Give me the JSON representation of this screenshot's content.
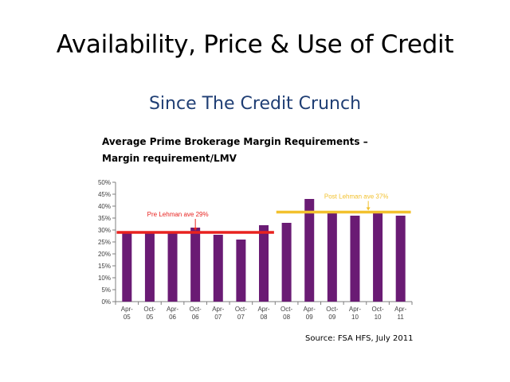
{
  "slide": {
    "title": "Availability, Price & Use of Credit",
    "subtitle": "Since The Credit Crunch",
    "source": "Source: FSA HFS, July 2011"
  },
  "chart_data": {
    "type": "bar",
    "title_line1": "Average Prime Brokerage Margin Requirements –",
    "title_line2": "Margin requirement/LMV",
    "categories": [
      [
        "Apr-",
        "05"
      ],
      [
        "Oct-",
        "05"
      ],
      [
        "Apr-",
        "06"
      ],
      [
        "Oct-",
        "06"
      ],
      [
        "Apr-",
        "07"
      ],
      [
        "Oct-",
        "07"
      ],
      [
        "Apr-",
        "08"
      ],
      [
        "Oct-",
        "08"
      ],
      [
        "Apr-",
        "09"
      ],
      [
        "Oct-",
        "09"
      ],
      [
        "Apr-",
        "10"
      ],
      [
        "Oct-",
        "10"
      ],
      [
        "Apr-",
        "11"
      ]
    ],
    "values": [
      29,
      29,
      29,
      31,
      28,
      26,
      32,
      33,
      43,
      38,
      36,
      38,
      36
    ],
    "ylim": [
      0,
      50
    ],
    "yticks": [
      "0%",
      "5%",
      "10%",
      "15%",
      "20%",
      "25%",
      "30%",
      "35%",
      "40%",
      "45%",
      "50%"
    ],
    "bar_color": "#6a1b74",
    "annotations": [
      {
        "label": "Pre Lehman ave 29%",
        "value": 29,
        "from_index": 0,
        "to_index": 6,
        "color": "#e8221f"
      },
      {
        "label": "Post Lehman ave 37%",
        "value": 37.5,
        "from_index": 7,
        "to_index": 12,
        "color": "#f2c12e"
      }
    ],
    "grid": false
  }
}
